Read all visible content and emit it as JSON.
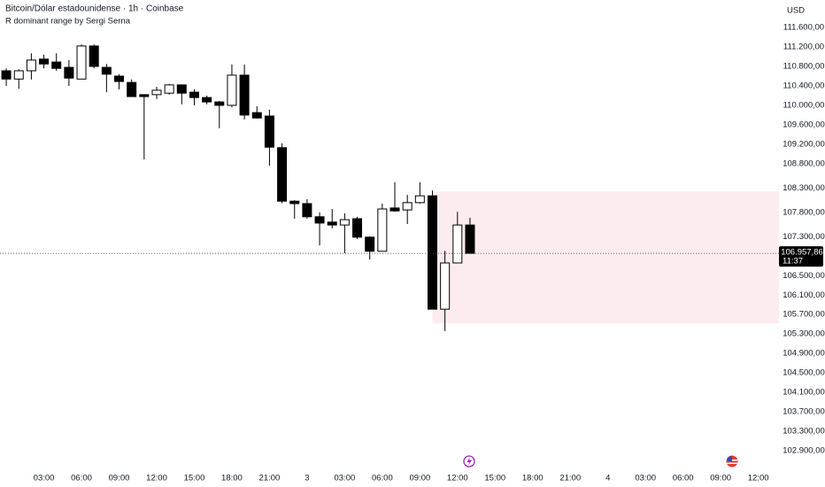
{
  "chart_data": {
    "type": "candlestick",
    "title": "Bitcoin/Dólar estadounidense · 1h · Coinbase",
    "subtitle": "R dominant range by Sergi Serna",
    "currency": "USD",
    "x": [
      0,
      1,
      2,
      3,
      4,
      5,
      6,
      7,
      8,
      9,
      10,
      11,
      12,
      13,
      14,
      15,
      16,
      17,
      18,
      19,
      20,
      21,
      22,
      23,
      24,
      25,
      26,
      27,
      28,
      29,
      30,
      31,
      32,
      33,
      34,
      35,
      36,
      37
    ],
    "open": [
      110710,
      110540,
      110710,
      110950,
      110890,
      110780,
      110540,
      111220,
      110780,
      110600,
      110470,
      110220,
      110220,
      110250,
      110420,
      110270,
      110160,
      110070,
      110000,
      110620,
      109850,
      109780,
      109130,
      108030,
      107980,
      107710,
      107600,
      107540,
      107670,
      107290,
      107000,
      107890,
      107850,
      108000,
      108140,
      105810,
      106760,
      107540
    ],
    "high": [
      110760,
      110740,
      111070,
      111040,
      111070,
      110930,
      111250,
      111250,
      110850,
      110640,
      110530,
      110220,
      110380,
      110440,
      110420,
      110330,
      110200,
      110090,
      110840,
      110840,
      109980,
      109910,
      109220,
      108050,
      108070,
      107800,
      107870,
      107780,
      107710,
      107310,
      107980,
      108420,
      108160,
      108420,
      108250,
      107010,
      107810,
      107690
    ],
    "low": [
      110400,
      110340,
      110530,
      110760,
      110710,
      110400,
      110540,
      110760,
      110270,
      110330,
      110180,
      108890,
      110130,
      110220,
      110020,
      110000,
      110020,
      109530,
      109960,
      109710,
      109730,
      108760,
      107990,
      107670,
      107670,
      107120,
      107470,
      106960,
      107250,
      106830,
      107000,
      107810,
      107560,
      107980,
      105810,
      105360,
      106760,
      106957.86
    ],
    "close": [
      110540,
      110710,
      110930,
      110850,
      110760,
      110560,
      111220,
      110800,
      110640,
      110490,
      110180,
      110180,
      110310,
      110420,
      110250,
      110160,
      110070,
      110000,
      110620,
      109800,
      109740,
      109140,
      108030,
      107980,
      107710,
      107580,
      107540,
      107650,
      107290,
      107000,
      107870,
      107830,
      108000,
      108140,
      105810,
      106760,
      107540,
      106957.86
    ],
    "up_color": "#ffffff",
    "down_color": "#000000",
    "range": {
      "from": 34,
      "high": 108230,
      "low": 105520,
      "color": "#fdecef"
    },
    "last_price": {
      "value": 106957.86,
      "label": "106.957,86"
    },
    "countdown": "11:37",
    "xlim": [
      -0.5,
      61.65
    ],
    "ylim": [
      102610,
      112165
    ],
    "xticks": [
      {
        "value": 3,
        "label": "03:00"
      },
      {
        "value": 6,
        "label": "06:00"
      },
      {
        "value": 9,
        "label": "09:00"
      },
      {
        "value": 12,
        "label": "12:00"
      },
      {
        "value": 15,
        "label": "15:00"
      },
      {
        "value": 18,
        "label": "18:00"
      },
      {
        "value": 21,
        "label": "21:00"
      },
      {
        "value": 24,
        "label": "3"
      },
      {
        "value": 27,
        "label": "03:00"
      },
      {
        "value": 30,
        "label": "06:00"
      },
      {
        "value": 33,
        "label": "09:00"
      },
      {
        "value": 36,
        "label": "12:00"
      },
      {
        "value": 39,
        "label": "15:00"
      },
      {
        "value": 42,
        "label": "18:00"
      },
      {
        "value": 45,
        "label": "21:00"
      },
      {
        "value": 48,
        "label": "4"
      },
      {
        "value": 51,
        "label": "03:00"
      },
      {
        "value": 54,
        "label": "06:00"
      },
      {
        "value": 57,
        "label": "09:00"
      },
      {
        "value": 60,
        "label": "12:00"
      }
    ],
    "yticks": [
      {
        "value": 111600,
        "label": "111.600,00"
      },
      {
        "value": 111200,
        "label": "111.200,00"
      },
      {
        "value": 110800,
        "label": "110.800,00"
      },
      {
        "value": 110400,
        "label": "110.400,00"
      },
      {
        "value": 110000,
        "label": "110.000,00"
      },
      {
        "value": 109600,
        "label": "109.600,00"
      },
      {
        "value": 109200,
        "label": "109.200,00"
      },
      {
        "value": 108800,
        "label": "108.800,00"
      },
      {
        "value": 108300,
        "label": "108.300,00"
      },
      {
        "value": 107800,
        "label": "107.800,00"
      },
      {
        "value": 107300,
        "label": "107.300,00"
      },
      {
        "value": 106500,
        "label": "106.500,00"
      },
      {
        "value": 106100,
        "label": "106.100,00"
      },
      {
        "value": 105700,
        "label": "105.700,00"
      },
      {
        "value": 105300,
        "label": "105.300,00"
      },
      {
        "value": 104900,
        "label": "104.900,00"
      },
      {
        "value": 104500,
        "label": "104.500,00"
      },
      {
        "value": 104100,
        "label": "104.100,00"
      },
      {
        "value": 103700,
        "label": "103.700,00"
      },
      {
        "value": 103300,
        "label": "103.300,00"
      },
      {
        "value": 102900,
        "label": "102.900,00"
      }
    ]
  }
}
